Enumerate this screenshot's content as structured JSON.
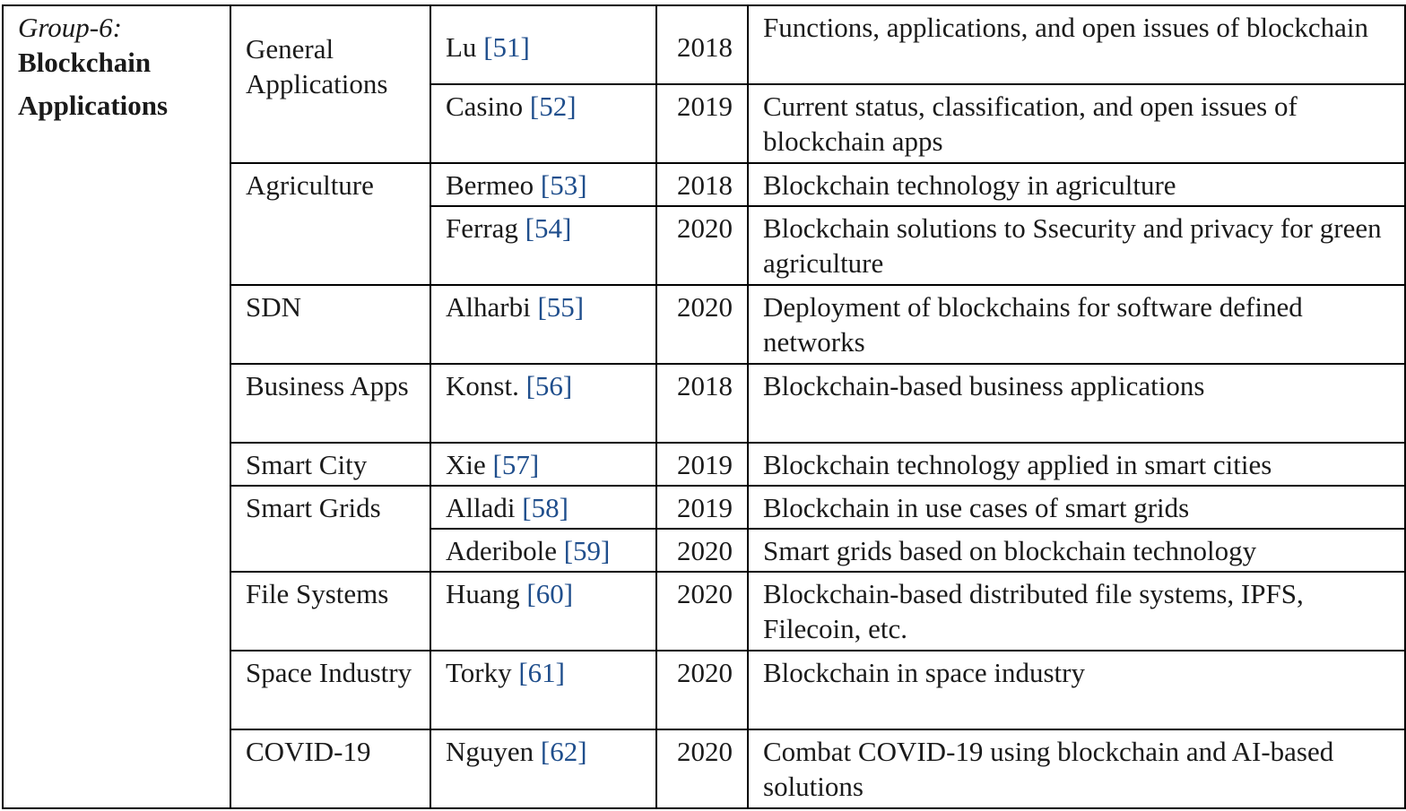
{
  "group": {
    "prefix": "Group-6:",
    "title_line1": "Blockchain",
    "title_line2": "Applications"
  },
  "rows": [
    {
      "category": "General Applications",
      "author": "Lu",
      "ref": "[51]",
      "year": "2018",
      "description": "Functions, applications, and open issues of blockchain"
    },
    {
      "author": "Casino",
      "ref": "[52]",
      "year": "2019",
      "description": "Current status, classification, and open issues of blockchain apps"
    },
    {
      "category": "Agriculture",
      "author": "Bermeo",
      "ref": "[53]",
      "year": "2018",
      "description": "Blockchain technology in agriculture"
    },
    {
      "author": "Ferrag",
      "ref": "[54]",
      "year": "2020",
      "description": "Blockchain solutions to Ssecurity and privacy for green agriculture"
    },
    {
      "category": "SDN",
      "author": "Alharbi",
      "ref": "[55]",
      "year": "2020",
      "description": "Deployment of blockchains for software defined networks"
    },
    {
      "category": "Business Apps",
      "author": "Konst.",
      "ref": "[56]",
      "year": "2018",
      "description": "Blockchain-based business applications"
    },
    {
      "category": "Smart City",
      "author": "Xie",
      "ref": "[57]",
      "year": "2019",
      "description": "Blockchain technology applied in smart cities"
    },
    {
      "category": "Smart Grids",
      "author": "Alladi",
      "ref": "[58]",
      "year": "2019",
      "description": "Blockchain in use cases of smart grids"
    },
    {
      "author": "Aderibole",
      "ref": "[59]",
      "year": "2020",
      "description": "Smart grids based on blockchain technology"
    },
    {
      "category": "File Systems",
      "author": "Huang",
      "ref": "[60]",
      "year": "2020",
      "description": "Blockchain-based distributed file systems, IPFS, Filecoin, etc."
    },
    {
      "category": "Space Industry",
      "author": "Torky",
      "ref": "[61]",
      "year": "2020",
      "description": "Blockchain in space industry"
    },
    {
      "category": "COVID-19",
      "author": "Nguyen",
      "ref": "[62]",
      "year": "2020",
      "description": "Combat COVID-19 using blockchain and AI-based solutions"
    }
  ]
}
